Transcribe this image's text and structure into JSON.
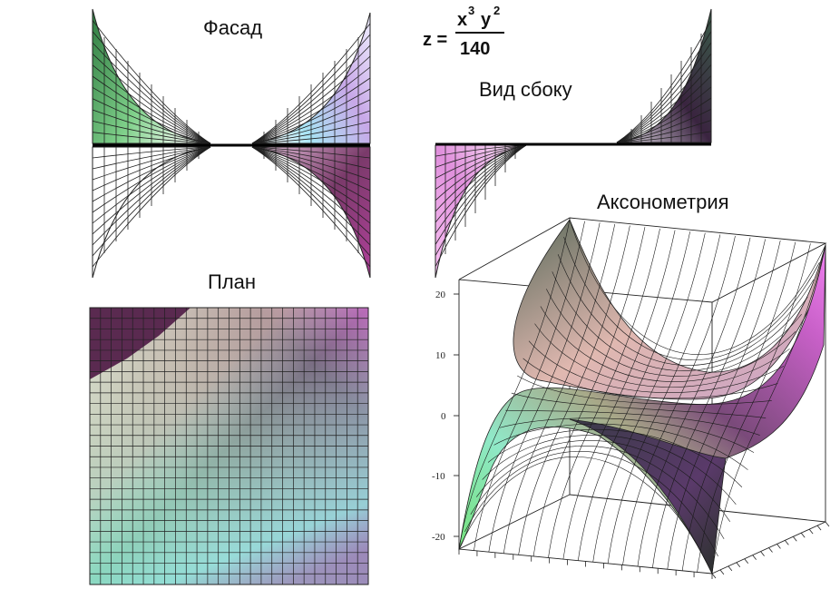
{
  "labels": {
    "facade": "Фасад",
    "side_view": "Вид  сбоку",
    "plan": "План",
    "axonometry": "Аксонометрия"
  },
  "formula": {
    "lhs": "z =",
    "numerator_x": "x",
    "exp_x": "3",
    "numerator_y": "y",
    "exp_y": "2",
    "denominator": "140"
  },
  "axis": {
    "z_ticks": [
      "20",
      "10",
      "0",
      "-10",
      "-20"
    ]
  },
  "colors": {
    "green": "#2e9a3e",
    "magenta": "#c040b0",
    "dark_purple": "#3a2440",
    "cyan": "#a8f0f8",
    "light_green": "#d8f5c0",
    "mesh": "#202020"
  }
}
